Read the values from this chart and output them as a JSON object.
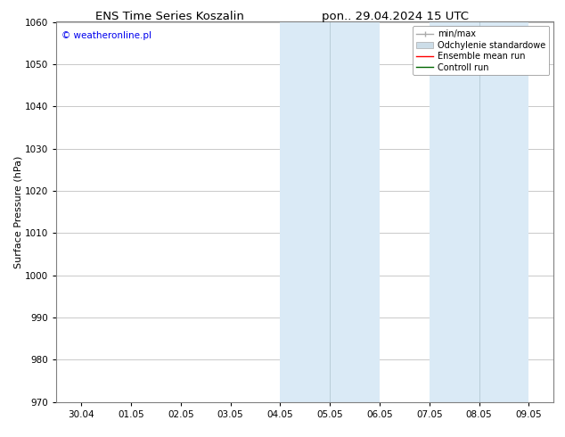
{
  "title_left": "ENS Time Series Koszalin",
  "title_right": "pon.. 29.04.2024 15 UTC",
  "ylabel": "Surface Pressure (hPa)",
  "ylim": [
    970,
    1060
  ],
  "yticks": [
    970,
    980,
    990,
    1000,
    1010,
    1020,
    1030,
    1040,
    1050,
    1060
  ],
  "xtick_labels": [
    "30.04",
    "01.05",
    "02.05",
    "03.05",
    "04.05",
    "05.05",
    "06.05",
    "07.05",
    "08.05",
    "09.05"
  ],
  "x_values": [
    0,
    1,
    2,
    3,
    4,
    5,
    6,
    7,
    8,
    9
  ],
  "xlim": [
    -0.5,
    9.5
  ],
  "shaded_regions": [
    {
      "xmin": 4.0,
      "xmax": 5.0,
      "color": "#daeaf6"
    },
    {
      "xmin": 5.0,
      "xmax": 6.0,
      "color": "#daeaf6"
    },
    {
      "xmin": 7.0,
      "xmax": 8.0,
      "color": "#daeaf6"
    },
    {
      "xmin": 8.0,
      "xmax": 9.0,
      "color": "#daeaf6"
    }
  ],
  "dividers": [
    4.0,
    5.0,
    6.0,
    7.0,
    8.0,
    9.0
  ],
  "watermark_text": "© weatheronline.pl",
  "watermark_color": "#0000ee",
  "background_color": "#ffffff",
  "plot_bg_color": "#ffffff",
  "grid_color": "#c0c0c0",
  "legend_items": [
    {
      "label": "min/max",
      "color": "#aaaaaa",
      "lw": 1.2
    },
    {
      "label": "Odchylenie standardowe",
      "color": "#c8dcea",
      "lw": 8
    },
    {
      "label": "Ensemble mean run",
      "color": "#ff0000",
      "lw": 1.2
    },
    {
      "label": "Controll run",
      "color": "#006600",
      "lw": 1.2
    }
  ],
  "title_fontsize": 9.5,
  "tick_fontsize": 7.5,
  "ylabel_fontsize": 8,
  "watermark_fontsize": 7.5,
  "legend_fontsize": 7
}
